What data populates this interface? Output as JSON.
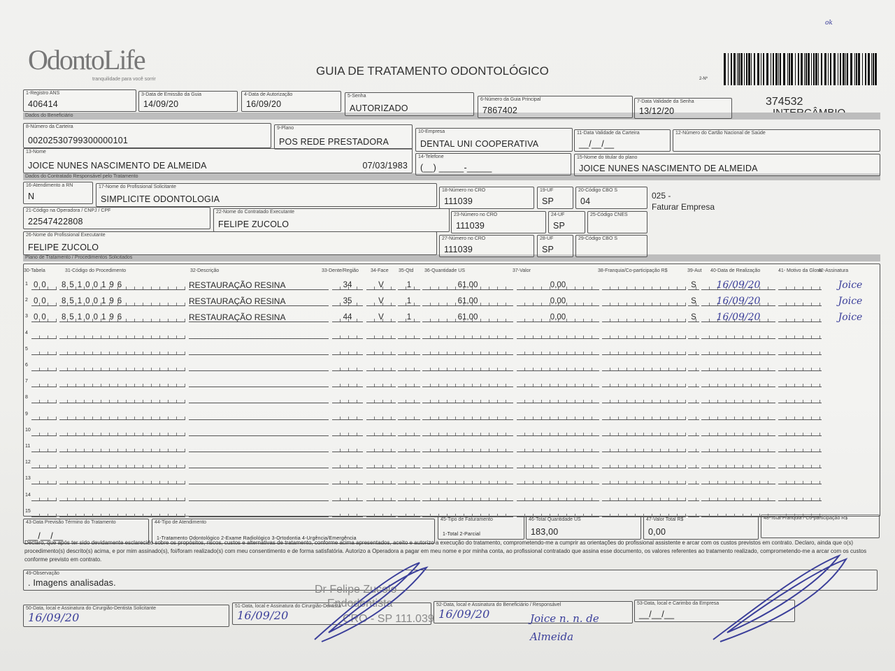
{
  "header": {
    "logo_text": "OdontoLife",
    "logo_tagline": "tranquilidade para você sorrir",
    "title": "GUIA DE TRATAMENTO ODONTOLÓGICO",
    "guide_number_label": "2-Nº",
    "guide_number": "374532",
    "guide_type": "INTERCÂMBIO",
    "corner_mark": "ok"
  },
  "sections": {
    "beneficiary": "Dados do Beneficiário",
    "contracted": "Dados do Contratado Responsável pelo Tratamento",
    "plan": "Plano de Tratamento / Procedimentos Solicitados"
  },
  "fields": {
    "f1": {
      "label": "1-Registro ANS",
      "value": "406414"
    },
    "f3": {
      "label": "3-Data de Emissão da Guia",
      "value": "14/09/20"
    },
    "f4": {
      "label": "4-Data de Autorização",
      "value": "16/09/20"
    },
    "f5": {
      "label": "5-Senha",
      "value": "AUTORIZADO"
    },
    "f6": {
      "label": "6-Número da Guia Principal",
      "value": "7867402"
    },
    "f7": {
      "label": "7-Data Validade da Senha",
      "value": "13/12/20"
    },
    "f8": {
      "label": "8-Número da Carteira",
      "value": "00202530799300000101"
    },
    "f9": {
      "label": "9-Plano",
      "value": "POS REDE PRESTADORA"
    },
    "f10": {
      "label": "10-Empresa",
      "value": "DENTAL UNI  COOPERATIVA"
    },
    "f11": {
      "label": "11-Data Validade da Carteira",
      "value": "__/__/__"
    },
    "f12": {
      "label": "12-Número do Cartão Nacional de Saúde",
      "value": ""
    },
    "f13": {
      "label": "13-Nome",
      "value": "JOICE NUNES NASCIMENTO DE ALMEIDA",
      "extra": "07/03/1983"
    },
    "f14": {
      "label": "14-Telefone",
      "value": "(__) _____-_____"
    },
    "f15": {
      "label": "15-Nome do titular do plano",
      "value": "JOICE NUNES NASCIMENTO DE ALMEIDA"
    },
    "f16": {
      "label": "16-Atendimento a RN",
      "value": "N"
    },
    "f17": {
      "label": "17-Nome do Profissional Solicitante",
      "value": "SIMPLICITE ODONTOLOGIA"
    },
    "f18": {
      "label": "18-Número no CRO",
      "value": "111039"
    },
    "f19": {
      "label": "19-UF",
      "value": "SP"
    },
    "f20": {
      "label": "20-Código CBO S",
      "value": "04"
    },
    "f21": {
      "label": "21-Código na Operadora / CNPJ / CPF",
      "value": "22547422808"
    },
    "f22": {
      "label": "22-Nome do Contratado Executante",
      "value": "FELIPE ZUCOLO"
    },
    "f23": {
      "label": "23-Número no CRO",
      "value": "111039"
    },
    "f24": {
      "label": "24-UF",
      "value": "SP"
    },
    "f25": {
      "label": "25-Código CNES",
      "value": ""
    },
    "f26": {
      "label": "26-Nome do Profissional Executante",
      "value": "FELIPE ZUCOLO"
    },
    "f27": {
      "label": "27-Número no CRO",
      "value": "111039"
    },
    "f28": {
      "label": "28-UF",
      "value": "SP"
    },
    "f29": {
      "label": "29-Código CBO S",
      "value": ""
    },
    "f43": {
      "label": "43-Data Previsão Término do Tratamento",
      "value": "__/__/__"
    },
    "f44": {
      "label": "44-Tipo de Atendimento",
      "value": "1-Tratamento Odontológico  2-Exame Radiológico  3-Ortodontia  4-Urgência/Emergência"
    },
    "f45": {
      "label": "45-Tipo de Faturamento",
      "value": "1-Total  2-Parcial"
    },
    "f46": {
      "label": "46-Total Quantidade US",
      "value": "183,00"
    },
    "f47": {
      "label": "47-Valor Total R$",
      "value": "0,00"
    },
    "f48": {
      "label": "48-Total Franquia / Co-participação R$",
      "value": ""
    },
    "f49": {
      "label": "49-Observação",
      "value": ". Imagens analisadas."
    },
    "f50": {
      "label": "50-Data, local e Assinatura do Cirurgião-Dentista Solicitante",
      "value": "16/09/20"
    },
    "f51": {
      "label": "51-Data, local e Assinatura do Cirurgião-Dentista",
      "value": "16/09/20"
    },
    "f52": {
      "label": "52-Data, local e Assinatura do Beneficiário / Responsável",
      "value": "16/09/20"
    },
    "f53": {
      "label": "53-Data, local e Carimbo da Empresa",
      "value": "__/__/__"
    }
  },
  "billing_note": {
    "code": "025 -",
    "text": "Faturar Empresa"
  },
  "procedures": {
    "headers": [
      "30-Tabela",
      "31-Código do Procedimento",
      "32-Descrição",
      "33-Dente/Região",
      "34-Face",
      "35-Qtd",
      "36-Quantidade US",
      "37-Valor",
      "38-Franquia/Co-participação R$",
      "39-Aut",
      "40-Data de Realização",
      "41- Motivo da Glosa",
      "42-Assinatura"
    ],
    "rows": [
      {
        "n": "1",
        "tabela": "00",
        "codigo": "85100196",
        "descricao": "RESTAURAÇÃO RESINA",
        "dente": "34",
        "face": "V",
        "qtd": "1",
        "qtd_us": "61,00",
        "valor": "0,00",
        "franquia": "",
        "aut": "S",
        "data": "16/09/20",
        "motivo": "",
        "assinatura": "Joice"
      },
      {
        "n": "2",
        "tabela": "00",
        "codigo": "85100196",
        "descricao": "RESTAURAÇÃO RESINA",
        "dente": "35",
        "face": "V",
        "qtd": "1",
        "qtd_us": "61,00",
        "valor": "0,00",
        "franquia": "",
        "aut": "S",
        "data": "16/09/20",
        "motivo": "",
        "assinatura": "Joice"
      },
      {
        "n": "3",
        "tabela": "00",
        "codigo": "85100196",
        "descricao": "RESTAURAÇÃO RESINA",
        "dente": "44",
        "face": "V",
        "qtd": "1",
        "qtd_us": "61,00",
        "valor": "0,00",
        "franquia": "",
        "aut": "S",
        "data": "16/09/20",
        "motivo": "",
        "assinatura": "Joice"
      },
      {
        "n": "4"
      },
      {
        "n": "5"
      },
      {
        "n": "6"
      },
      {
        "n": "7"
      },
      {
        "n": "8"
      },
      {
        "n": "9"
      },
      {
        "n": "10"
      },
      {
        "n": "11"
      },
      {
        "n": "12"
      },
      {
        "n": "13"
      },
      {
        "n": "14"
      },
      {
        "n": "15"
      }
    ]
  },
  "declaration": "Declaro, que após ter sido devidamente esclarecido sobre os propósitos, riscos, custos e alternativas de tratamento, conforme acima apresentados, aceito e autorizo a execução do tratamento, comprometendo-me a cumprir as orientações do profissional assistente e arcar com os custos previstos em contrato. Declaro, ainda que o(s) procedimento(s) descrito(s) acima, e por mim assinado(s), foi/foram realizado(s) com meu consentimento e de forma satisfatória. Autorizo a Operadora a pagar em meu nome e por minha conta, ao profissional contratado que assina esse documento, os valores referentes ao tratamento realizado, comprometendo-me a arcar com os custos conforme previsto em contrato.",
  "stamp": {
    "line1": "Dr Felipe Zucolo",
    "line2": "Endodontista",
    "line3": "CRO - SP 111.039"
  },
  "handwriting": {
    "beneficiary_signature": "Joice n. n. de Almeida"
  },
  "colors": {
    "ink": "#3b3f9a",
    "section_bar": "#bdbdbd",
    "paper": "#efefec"
  }
}
